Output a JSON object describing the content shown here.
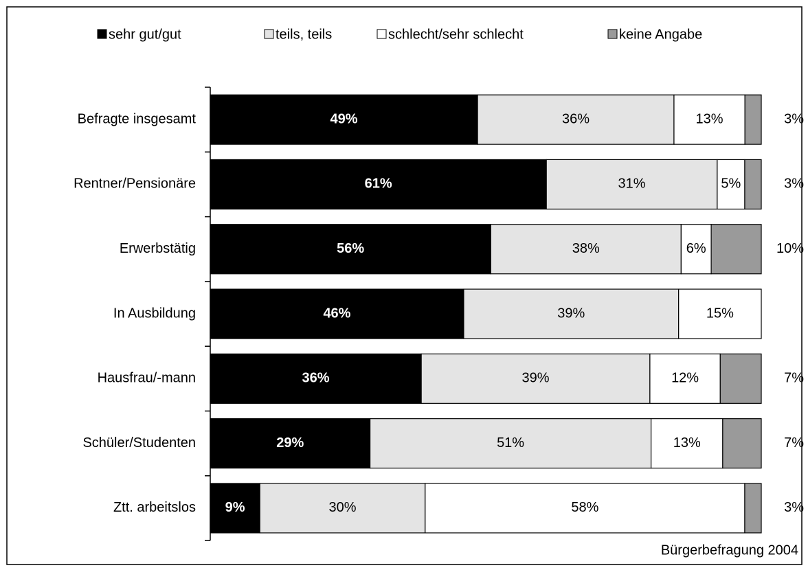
{
  "chart_data": {
    "type": "stacked-bar-100",
    "source": "Bürgerbefragung 2004",
    "categories": [
      "Befragte insgesamt",
      "Rentner/Pensionäre",
      "Erwerbstätig",
      "In Ausbildung",
      "Hausfrau/-mann",
      "Schüler/Studenten",
      "Ztt. arbeitslos"
    ],
    "series": [
      {
        "name": "sehr gut/gut",
        "color": "#000000",
        "values": [
          49,
          61,
          56,
          46,
          36,
          29,
          9
        ],
        "value_labels": [
          "49%",
          "61%",
          "56%",
          "46%",
          "36%",
          "29%",
          "9%"
        ]
      },
      {
        "name": "teils, teils",
        "color": "#e4e4e4",
        "values": [
          36,
          31,
          38,
          39,
          39,
          51,
          30
        ],
        "value_labels": [
          "36%",
          "31%",
          "38%",
          "39%",
          "39%",
          "51%",
          "30%"
        ]
      },
      {
        "name": "schlecht/sehr schlecht",
        "color": "#ffffff",
        "values": [
          13,
          5,
          6,
          15,
          12,
          13,
          58
        ],
        "value_labels": [
          "13%",
          "5%",
          "6%",
          "15%",
          "12%",
          "13%",
          "58%"
        ]
      },
      {
        "name": "keine Angabe",
        "color": "#9a9a9a",
        "values": [
          3,
          3,
          10,
          null,
          7,
          7,
          3
        ],
        "value_labels": [
          "3%",
          "3%",
          "10%",
          null,
          "7%",
          "7%",
          "3%"
        ]
      }
    ]
  }
}
